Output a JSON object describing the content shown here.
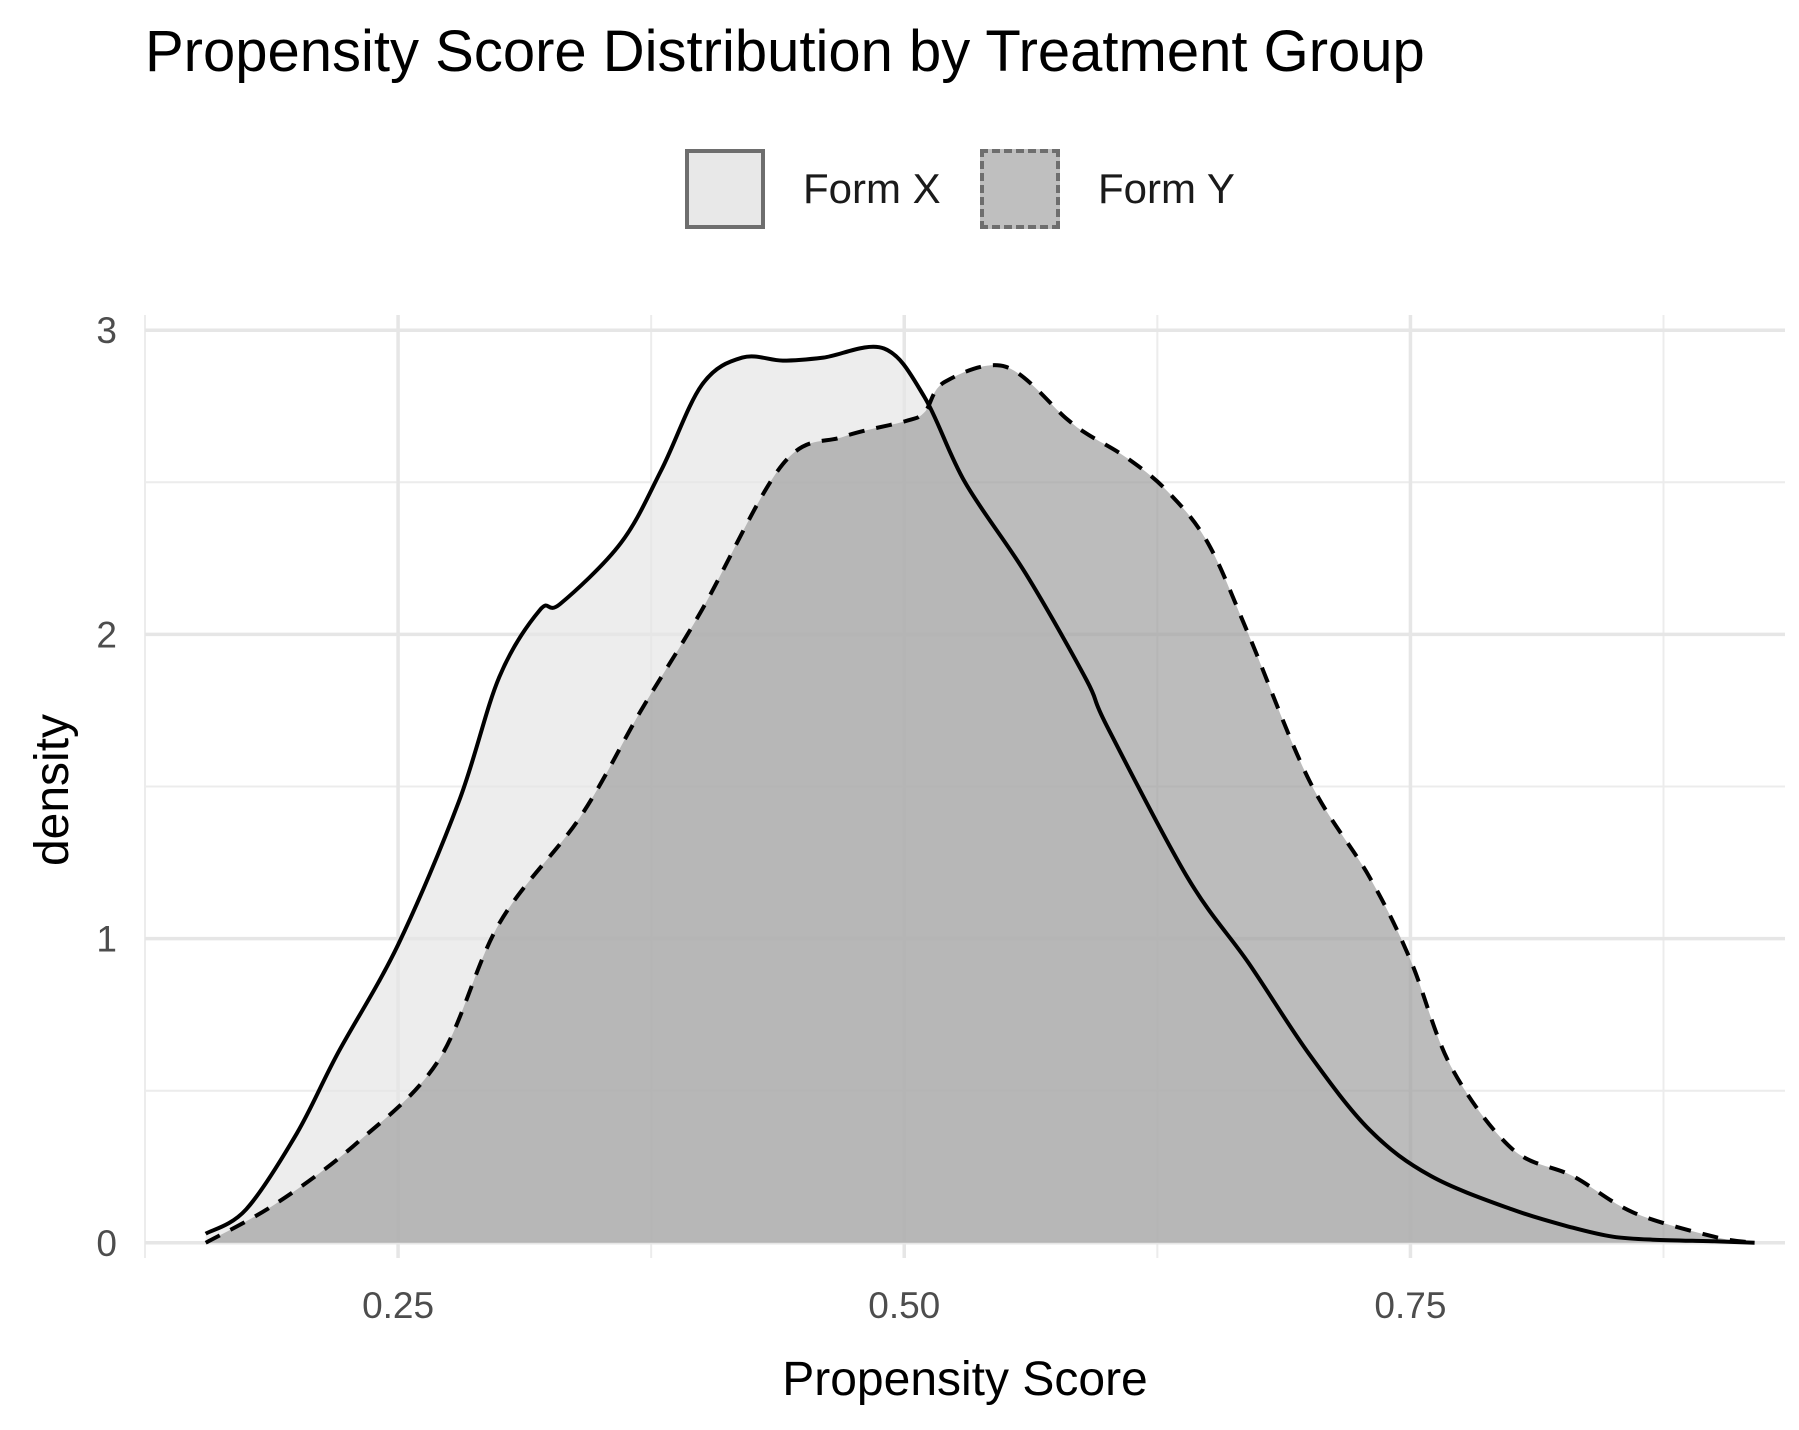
{
  "chart_data": {
    "type": "area",
    "title": "Propensity Score Distribution by Treatment Group",
    "xlabel": "Propensity Score",
    "ylabel": "density",
    "xlim": [
      0.125,
      0.935
    ],
    "ylim": [
      -0.05,
      3.05
    ],
    "x_ticks": [
      0.25,
      0.5,
      0.75
    ],
    "x_tick_labels": [
      "0.25",
      "0.50",
      "0.75"
    ],
    "x_minor_ticks": [
      0.125,
      0.375,
      0.625,
      0.875
    ],
    "y_ticks": [
      0,
      1,
      2,
      3
    ],
    "y_tick_labels": [
      "0",
      "1",
      "2",
      "3"
    ],
    "y_minor_ticks": [
      0.5,
      1.5,
      2.5
    ],
    "grid": true,
    "legend_position": "top",
    "series": [
      {
        "name": "Form X",
        "fill": "#e6e6e6",
        "fill_opacity": 0.7,
        "stroke": "#000000",
        "line_style": "solid",
        "x": [
          0.155,
          0.175,
          0.2,
          0.22,
          0.25,
          0.28,
          0.3,
          0.32,
          0.33,
          0.36,
          0.38,
          0.4,
          0.42,
          0.44,
          0.46,
          0.49,
          0.51,
          0.53,
          0.56,
          0.59,
          0.6,
          0.64,
          0.67,
          0.7,
          0.73,
          0.76,
          0.8,
          0.83,
          0.85,
          0.87,
          0.9,
          0.92
        ],
        "y": [
          0.03,
          0.11,
          0.36,
          0.62,
          0.98,
          1.45,
          1.86,
          2.08,
          2.1,
          2.3,
          2.54,
          2.82,
          2.91,
          2.9,
          2.91,
          2.94,
          2.78,
          2.5,
          2.2,
          1.85,
          1.7,
          1.2,
          0.92,
          0.62,
          0.37,
          0.22,
          0.11,
          0.05,
          0.02,
          0.01,
          0.005,
          0.0
        ]
      },
      {
        "name": "Form Y",
        "fill": "#a0a0a0",
        "fill_opacity": 0.7,
        "stroke": "#000000",
        "line_style": "dashed",
        "x": [
          0.155,
          0.19,
          0.23,
          0.27,
          0.3,
          0.34,
          0.37,
          0.4,
          0.44,
          0.47,
          0.5,
          0.51,
          0.52,
          0.55,
          0.58,
          0.59,
          0.61,
          0.63,
          0.65,
          0.67,
          0.7,
          0.73,
          0.75,
          0.77,
          0.8,
          0.83,
          0.86,
          0.9,
          0.92
        ],
        "y": [
          0.0,
          0.13,
          0.33,
          0.6,
          1.05,
          1.4,
          1.75,
          2.08,
          2.56,
          2.65,
          2.7,
          2.73,
          2.83,
          2.88,
          2.71,
          2.66,
          2.58,
          2.47,
          2.3,
          2.0,
          1.52,
          1.2,
          0.93,
          0.58,
          0.31,
          0.22,
          0.1,
          0.02,
          0.0
        ]
      }
    ]
  }
}
